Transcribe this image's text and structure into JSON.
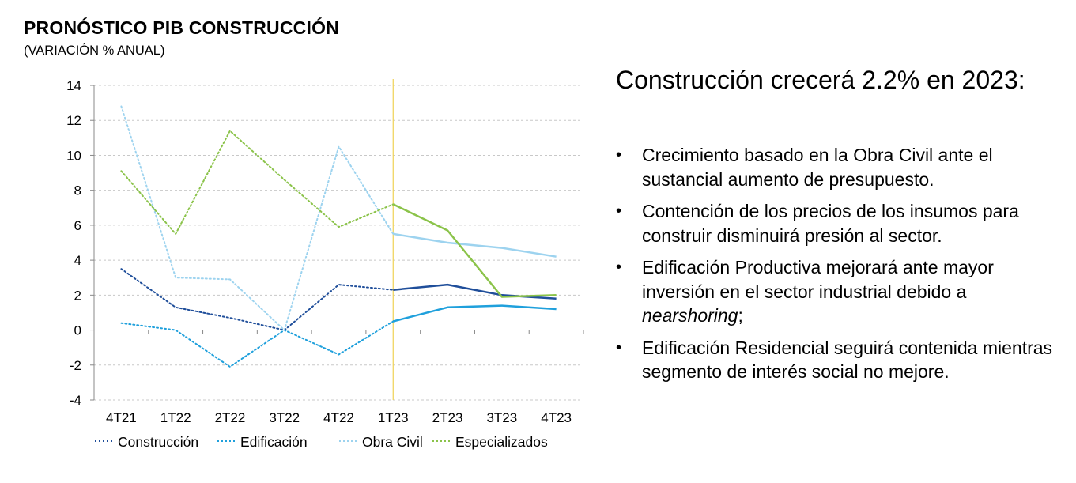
{
  "chart_data": {
    "type": "line",
    "title": "PRONÓSTICO PIB CONSTRUCCIÓN",
    "subtitle": "(VARIACIÓN % ANUAL)",
    "categories": [
      "4T21",
      "1T22",
      "2T22",
      "3T22",
      "4T22",
      "1T23",
      "2T23",
      "3T23",
      "4T23"
    ],
    "ylim": [
      -4,
      14
    ],
    "yticks": [
      -4,
      -2,
      0,
      2,
      4,
      6,
      8,
      10,
      12,
      14
    ],
    "grid": true,
    "legend_position": "bottom",
    "forecast_start_index": 5,
    "forecast_line_color": "#f0d560",
    "series": [
      {
        "name": "Construcción",
        "color": "#1f4e9a",
        "values": [
          3.5,
          1.3,
          0.7,
          0.0,
          2.6,
          2.3,
          2.6,
          2.0,
          1.8
        ]
      },
      {
        "name": "Edificación",
        "color": "#1fa0dc",
        "values": [
          0.4,
          0.0,
          -2.1,
          0.0,
          -1.4,
          0.5,
          1.3,
          1.4,
          1.2
        ]
      },
      {
        "name": "Obra Civil",
        "color": "#9dd3ef",
        "values": [
          12.8,
          3.0,
          2.9,
          0.0,
          10.5,
          5.5,
          5.0,
          4.7,
          4.2
        ]
      },
      {
        "name": "Especializados",
        "color": "#8bc34a",
        "values": [
          9.1,
          5.5,
          11.4,
          8.6,
          5.9,
          7.2,
          5.7,
          1.9,
          2.0
        ]
      }
    ]
  },
  "text_panel": {
    "headline": "Construcción crecerá 2.2% en 2023:",
    "bullet_marker": "•",
    "bullets": [
      {
        "text": "Crecimiento basado en la Obra Civil ante el sustancial aumento de presupuesto."
      },
      {
        "text": "Contención de los precios de los insumos para construir disminuirá presión al sector."
      },
      {
        "text_before": "Edificación Productiva mejorará ante mayor inversión en el sector industrial debido a ",
        "emphasis": "nearshoring",
        "text_after": ";"
      },
      {
        "text": "Edificación Residencial seguirá contenida mientras segmento de interés social no mejore."
      }
    ]
  }
}
